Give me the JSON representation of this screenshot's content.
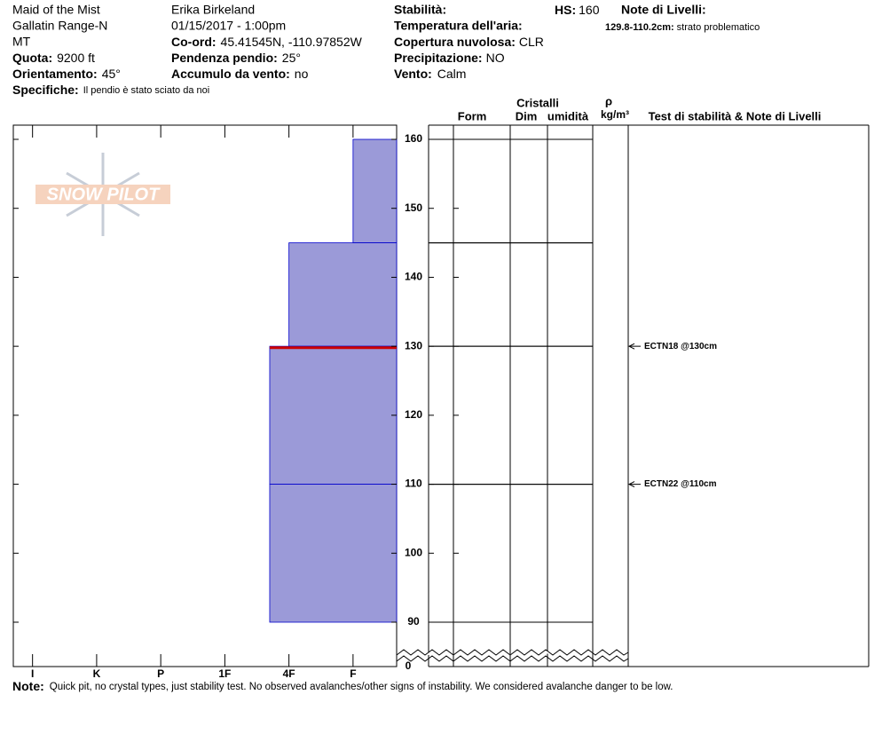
{
  "header": {
    "location": "Maid of the Mist",
    "range": "Gallatin Range-N",
    "state": "MT",
    "observer": "Erika Birkeland",
    "datetime": "01/15/2017 - 1:00pm",
    "elevation": {
      "label": "Quota:",
      "value": "9200 ft"
    },
    "aspect": {
      "label": "Orientamento:",
      "value": "45°"
    },
    "specifics": {
      "label": "Specifiche:",
      "value": "Il pendio è stato sciato da noi"
    },
    "coords": {
      "label": "Co-ord:",
      "value": "45.41545N, -110.97852W"
    },
    "incline": {
      "label": "Pendenza pendio:",
      "value": "25°"
    },
    "wind_loading": {
      "label": "Accumulo da vento:",
      "value": "no"
    },
    "stability": {
      "label": "Stabilità:"
    },
    "air_temp": {
      "label": "Temperatura dell'aria:"
    },
    "sky": {
      "label": "Copertura nuvolosa:",
      "value": "CLR"
    },
    "precip": {
      "label": "Precipitazione:",
      "value": "NO"
    },
    "wind": {
      "label": "Vento:",
      "value": "Calm"
    },
    "hs": {
      "label": "HS:",
      "value": "160"
    },
    "layer_notes": {
      "label": "Note di Livelli:",
      "range": "129.8-110.2cm:",
      "text": "strato problematico"
    }
  },
  "logo": "SNOW PILOT",
  "table_headers": {
    "crystals": "Cristalli",
    "form": "Form",
    "size": "Dim",
    "moisture": "umidità",
    "rho": "ρ",
    "density": "kg/m³",
    "tests": "Test di stabilità & Note di Livelli"
  },
  "footer": {
    "label": "Note:",
    "text": "Quick pit, no crystal types, just stability test. No observed avalanches/other signs of instability. We considered avalanche danger to be low."
  },
  "chart_data": {
    "type": "snow-profile",
    "layers": {
      "top": [
        160,
        145,
        130,
        110
      ],
      "bottom": [
        145,
        130,
        110,
        90
      ],
      "hardness": [
        1,
        2,
        2.3,
        2.3
      ],
      "color": "#9b9ad8",
      "edge": "#0000cc"
    },
    "problem_layer": {
      "depth": 129.8,
      "color": "#cc0000"
    },
    "ylim": [
      90,
      160
    ],
    "yticks": [
      90,
      100,
      110,
      120,
      130,
      140,
      150,
      160
    ],
    "ybase": 0,
    "xlim": [
      6.3,
      0.32
    ],
    "xticks": [
      {
        "value": 6,
        "label": "I"
      },
      {
        "value": 5,
        "label": "K"
      },
      {
        "value": 4,
        "label": "P"
      },
      {
        "value": 3,
        "label": "1F"
      },
      {
        "value": 2,
        "label": "4F"
      },
      {
        "value": 1,
        "label": "F"
      }
    ],
    "tests": {
      "labels": [
        "ECTN18 @130cm",
        "ECTN22 @110cm"
      ],
      "depths": [
        130,
        110
      ]
    }
  }
}
